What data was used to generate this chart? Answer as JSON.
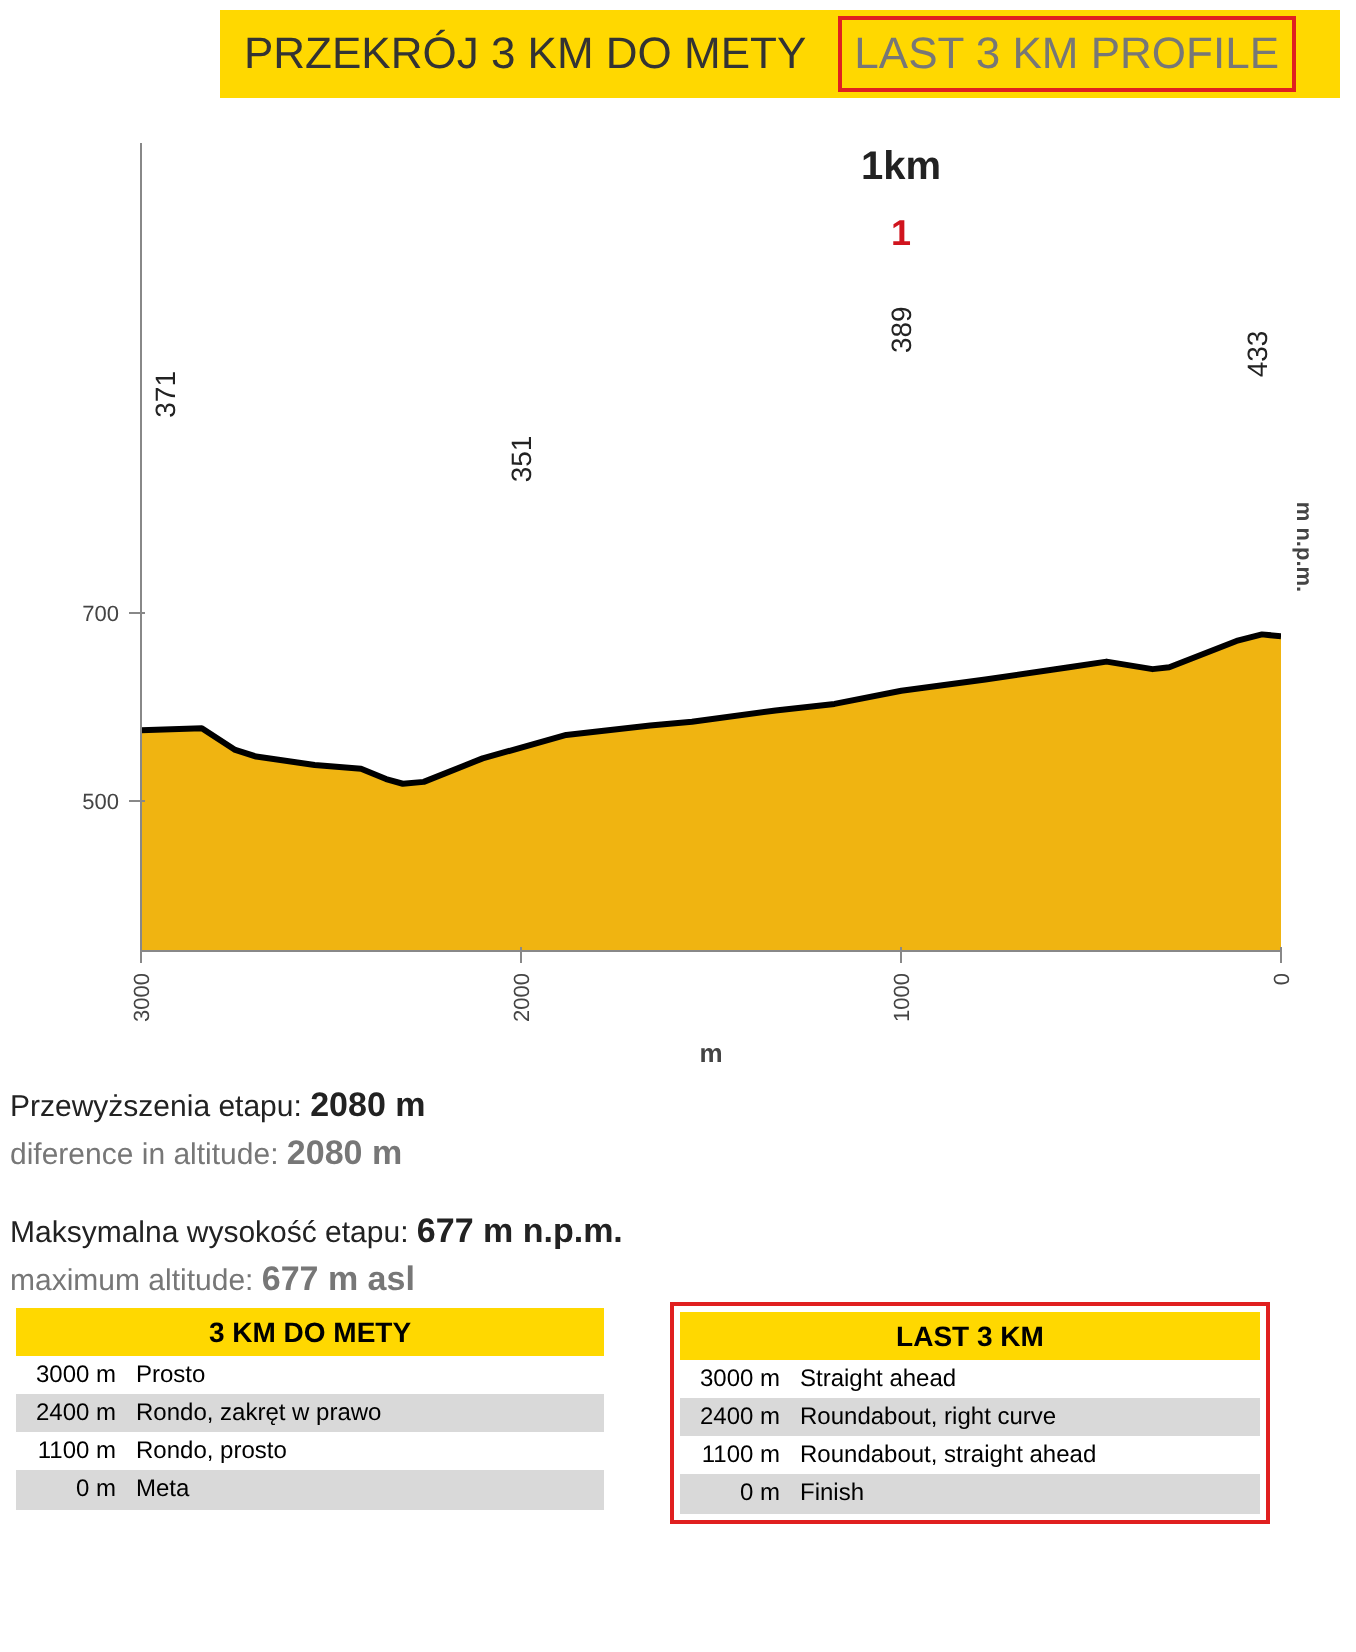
{
  "chart_data": {
    "type": "area",
    "title": "PRZEKRÓJ 3 KM DO METY",
    "subtitle": "LAST 3 KM PROFILE",
    "xlabel": "m",
    "ylabel": "m n.p.m.",
    "x": [
      3000,
      2840,
      2752,
      2697,
      2543,
      2421,
      2355,
      2311,
      2256,
      2101,
      1881,
      1660,
      1550,
      1330,
      1175,
      999,
      778,
      558,
      459,
      338,
      294,
      117,
      50,
      0
    ],
    "series": [
      {
        "color": "#f0b411",
        "values": [
          575,
          577,
          554,
          547,
          538,
          534,
          523,
          518,
          520,
          545,
          570,
          580,
          584,
          596,
          603,
          617,
          629,
          642,
          648,
          640,
          642,
          670,
          677,
          675
        ]
      }
    ],
    "xlim": [
      3000,
      0
    ],
    "xticks": [
      3000,
      2000,
      1000,
      0
    ],
    "ylim": [
      340,
      1200
    ],
    "yticks": [
      500,
      700
    ],
    "grid": false,
    "marker": "none",
    "line_style": "solid",
    "annotations": [
      "371",
      "351",
      "389",
      "433",
      "1km",
      "1",
      "Przewyższenia etapu: 2080 m",
      "diference in altitude: 2080 m",
      "Maksymalna wysokość etapu: 677 m n.p.m.",
      "maximum altitude: 677 m asl",
      "3 KM DO METY",
      "3000 m",
      "Prosto",
      "2400 m",
      "Rondo, zakręt w prawo",
      "1100 m",
      "Rondo, prosto",
      "0 m",
      "Meta",
      "LAST 3 KM",
      "3000 m",
      "Straight ahead",
      "2400 m",
      "Roundabout, right curve",
      "1100 m",
      "Roundabout, straight ahead",
      "0 m",
      "Finish"
    ]
  }
}
